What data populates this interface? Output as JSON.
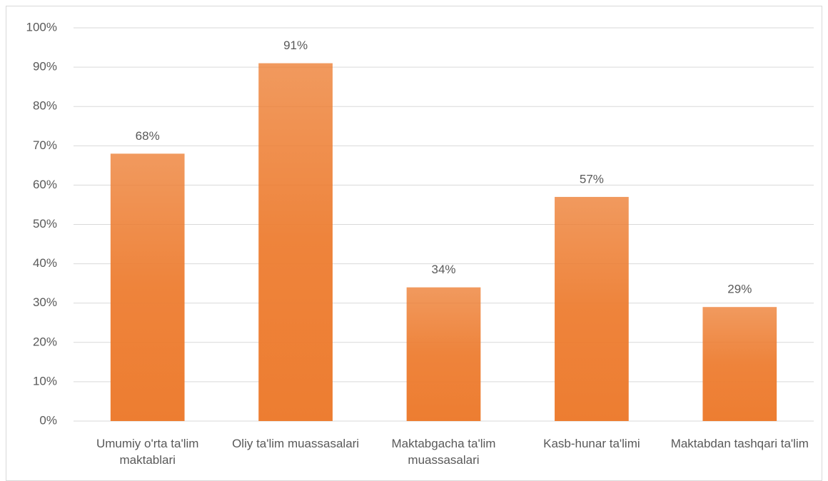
{
  "chart_data": {
    "type": "bar",
    "categories": [
      "Umumiy o'rta ta'lim maktablari",
      "Oliy ta'lim muassasalari",
      "Maktabgacha ta'lim muassasalari",
      "Kasb-hunar ta'limi",
      "Maktabdan tashqari ta'lim"
    ],
    "values": [
      68,
      91,
      34,
      57,
      29
    ],
    "value_labels": [
      "68%",
      "91%",
      "34%",
      "57%",
      "29%"
    ],
    "color": "#ed7d31",
    "ylim": [
      0,
      100
    ],
    "yticks": [
      {
        "value": 0,
        "label": "0%"
      },
      {
        "value": 10,
        "label": "10%"
      },
      {
        "value": 20,
        "label": "20%"
      },
      {
        "value": 30,
        "label": "30%"
      },
      {
        "value": 40,
        "label": "40%"
      },
      {
        "value": 50,
        "label": "50%"
      },
      {
        "value": 60,
        "label": "60%"
      },
      {
        "value": 70,
        "label": "70%"
      },
      {
        "value": 80,
        "label": "80%"
      },
      {
        "value": 90,
        "label": "90%"
      },
      {
        "value": 100,
        "label": "100%"
      }
    ],
    "grid": true
  }
}
